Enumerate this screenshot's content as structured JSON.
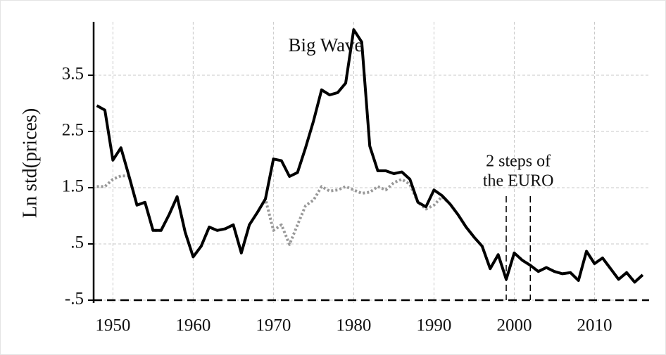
{
  "chart_data": {
    "type": "line",
    "ylabel": "Ln std(prices)",
    "x": [
      1948,
      1949,
      1950,
      1951,
      1952,
      1953,
      1954,
      1955,
      1956,
      1957,
      1958,
      1959,
      1960,
      1961,
      1962,
      1963,
      1964,
      1965,
      1966,
      1967,
      1968,
      1969,
      1970,
      1971,
      1972,
      1973,
      1974,
      1975,
      1976,
      1977,
      1978,
      1979,
      1980,
      1981,
      1982,
      1983,
      1984,
      1985,
      1986,
      1987,
      1988,
      1989,
      1990,
      1991,
      1992,
      1993,
      1994,
      1995,
      1996,
      1997,
      1998,
      1999,
      2000,
      2001,
      2002,
      2003,
      2004,
      2005,
      2006,
      2007,
      2008,
      2009,
      2010,
      2011,
      2012,
      2013,
      2014,
      2015,
      2016
    ],
    "series": [
      {
        "color": "#000000",
        "style": "solid",
        "values": [
          2.96,
          2.88,
          1.99,
          2.21,
          1.71,
          1.19,
          1.24,
          0.74,
          0.74,
          1.02,
          1.34,
          0.71,
          0.27,
          0.46,
          0.8,
          0.74,
          0.77,
          0.84,
          0.34,
          0.84,
          1.06,
          1.3,
          2.01,
          1.98,
          1.7,
          1.77,
          2.21,
          2.69,
          3.24,
          3.15,
          3.19,
          3.36,
          4.31,
          4.09,
          2.24,
          1.8,
          1.8,
          1.75,
          1.78,
          1.65,
          1.24,
          1.16,
          1.46,
          1.36,
          1.21,
          1.02,
          0.8,
          0.62,
          0.46,
          0.06,
          0.31,
          -0.13,
          0.34,
          0.21,
          0.12,
          0.01,
          0.08,
          0.01,
          -0.03,
          -0.01,
          -0.15,
          0.37,
          0.15,
          0.25,
          0.06,
          -0.13,
          -0.01,
          -0.18,
          -0.05
        ]
      },
      {
        "color": "#999999",
        "style": "dotted",
        "values": [
          1.52,
          1.52,
          1.65,
          1.71,
          1.71,
          1.19,
          1.24,
          0.74,
          0.74,
          1.02,
          1.34,
          0.71,
          0.27,
          0.46,
          0.8,
          0.74,
          0.77,
          0.84,
          0.34,
          0.84,
          1.06,
          1.3,
          0.74,
          0.84,
          0.49,
          0.84,
          1.18,
          1.28,
          1.52,
          1.44,
          1.46,
          1.52,
          1.46,
          1.4,
          1.42,
          1.52,
          1.46,
          1.59,
          1.65,
          1.56,
          1.24,
          1.12,
          1.19,
          1.34,
          1.21,
          1.02,
          0.8,
          0.62,
          0.46,
          0.06,
          0.31,
          -0.13,
          0.34,
          0.21,
          0.12,
          0.01,
          0.08,
          0.01,
          -0.03,
          -0.01,
          -0.15,
          0.37,
          0.15,
          0.25,
          0.06,
          -0.13,
          -0.01,
          -0.18,
          -0.05
        ]
      }
    ],
    "xlim": [
      1947.6,
      2016.8
    ],
    "xticks": [
      1950,
      1960,
      1970,
      1980,
      1990,
      2000,
      2010
    ],
    "ylim": [
      -0.55,
      4.45
    ],
    "yticks": [
      {
        "value": -0.5,
        "label": "-.5"
      },
      {
        "value": 0.5,
        "label": ".5"
      },
      1.5,
      2.5,
      3.5
    ],
    "grid": true,
    "hline": -0.5,
    "vlines": [
      1999,
      2002
    ],
    "annotations": [
      [
        "Big Wave"
      ],
      [
        "2 steps of",
        "the EURO"
      ]
    ]
  }
}
